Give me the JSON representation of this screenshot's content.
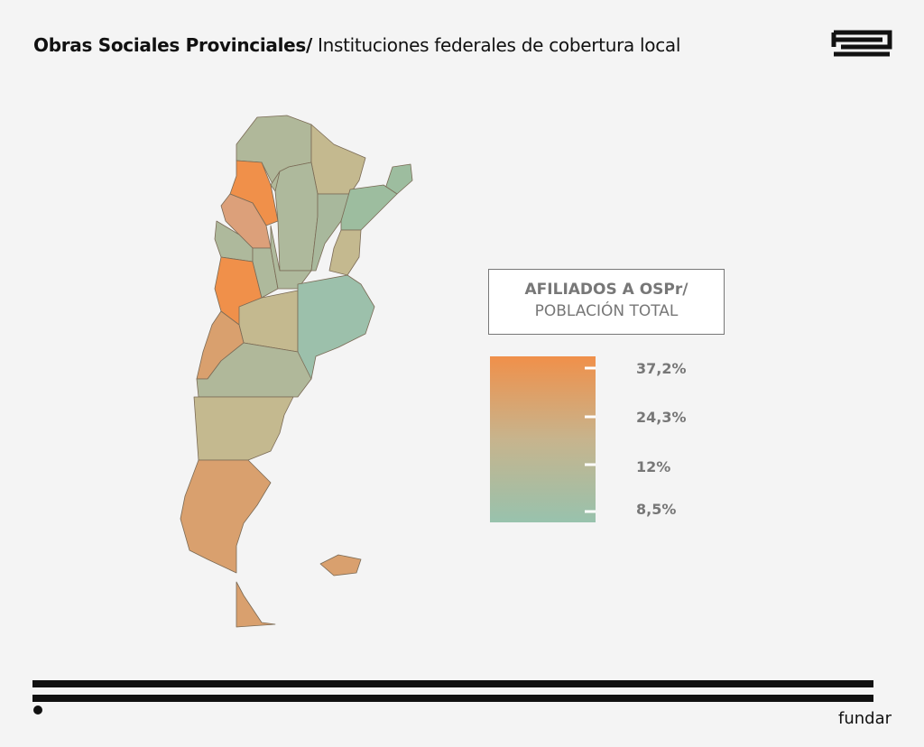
{
  "header": {
    "title_bold": "Obras Sociales Provinciales/",
    "title_regular": "Instituciones federales de cobertura local"
  },
  "legend": {
    "title_line1": "AFILIADOS A OSPr/",
    "title_line2": "POBLACIÓN TOTAL",
    "ticks": [
      "37,2%",
      "24,3%",
      "12%",
      "8,5%"
    ]
  },
  "footer": {
    "brand": "fundar"
  }
}
